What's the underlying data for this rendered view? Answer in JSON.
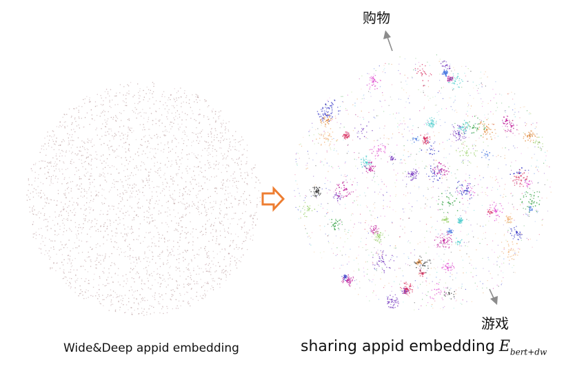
{
  "left_caption": "Wide&Deep appid embedding",
  "right_caption": {
    "text": "sharing appid embedding",
    "symbol": "E",
    "subscript": "bert+dw"
  },
  "annotations": {
    "top": "购物",
    "bottom": "游戏"
  },
  "colors": {
    "arrow_orange": "#ED7D31",
    "pointer_gray": "#8c8c8c",
    "left_points": "#b89a9a"
  },
  "cluster_palette": [
    "#2a9d3a",
    "#2b2bc2",
    "#c0209a",
    "#5ad0d0",
    "#e08a3a",
    "#d83060",
    "#7a3fc0",
    "#3a3a3a",
    "#4a7ae0",
    "#f2b880",
    "#9ad06a",
    "#e050d0"
  ]
}
